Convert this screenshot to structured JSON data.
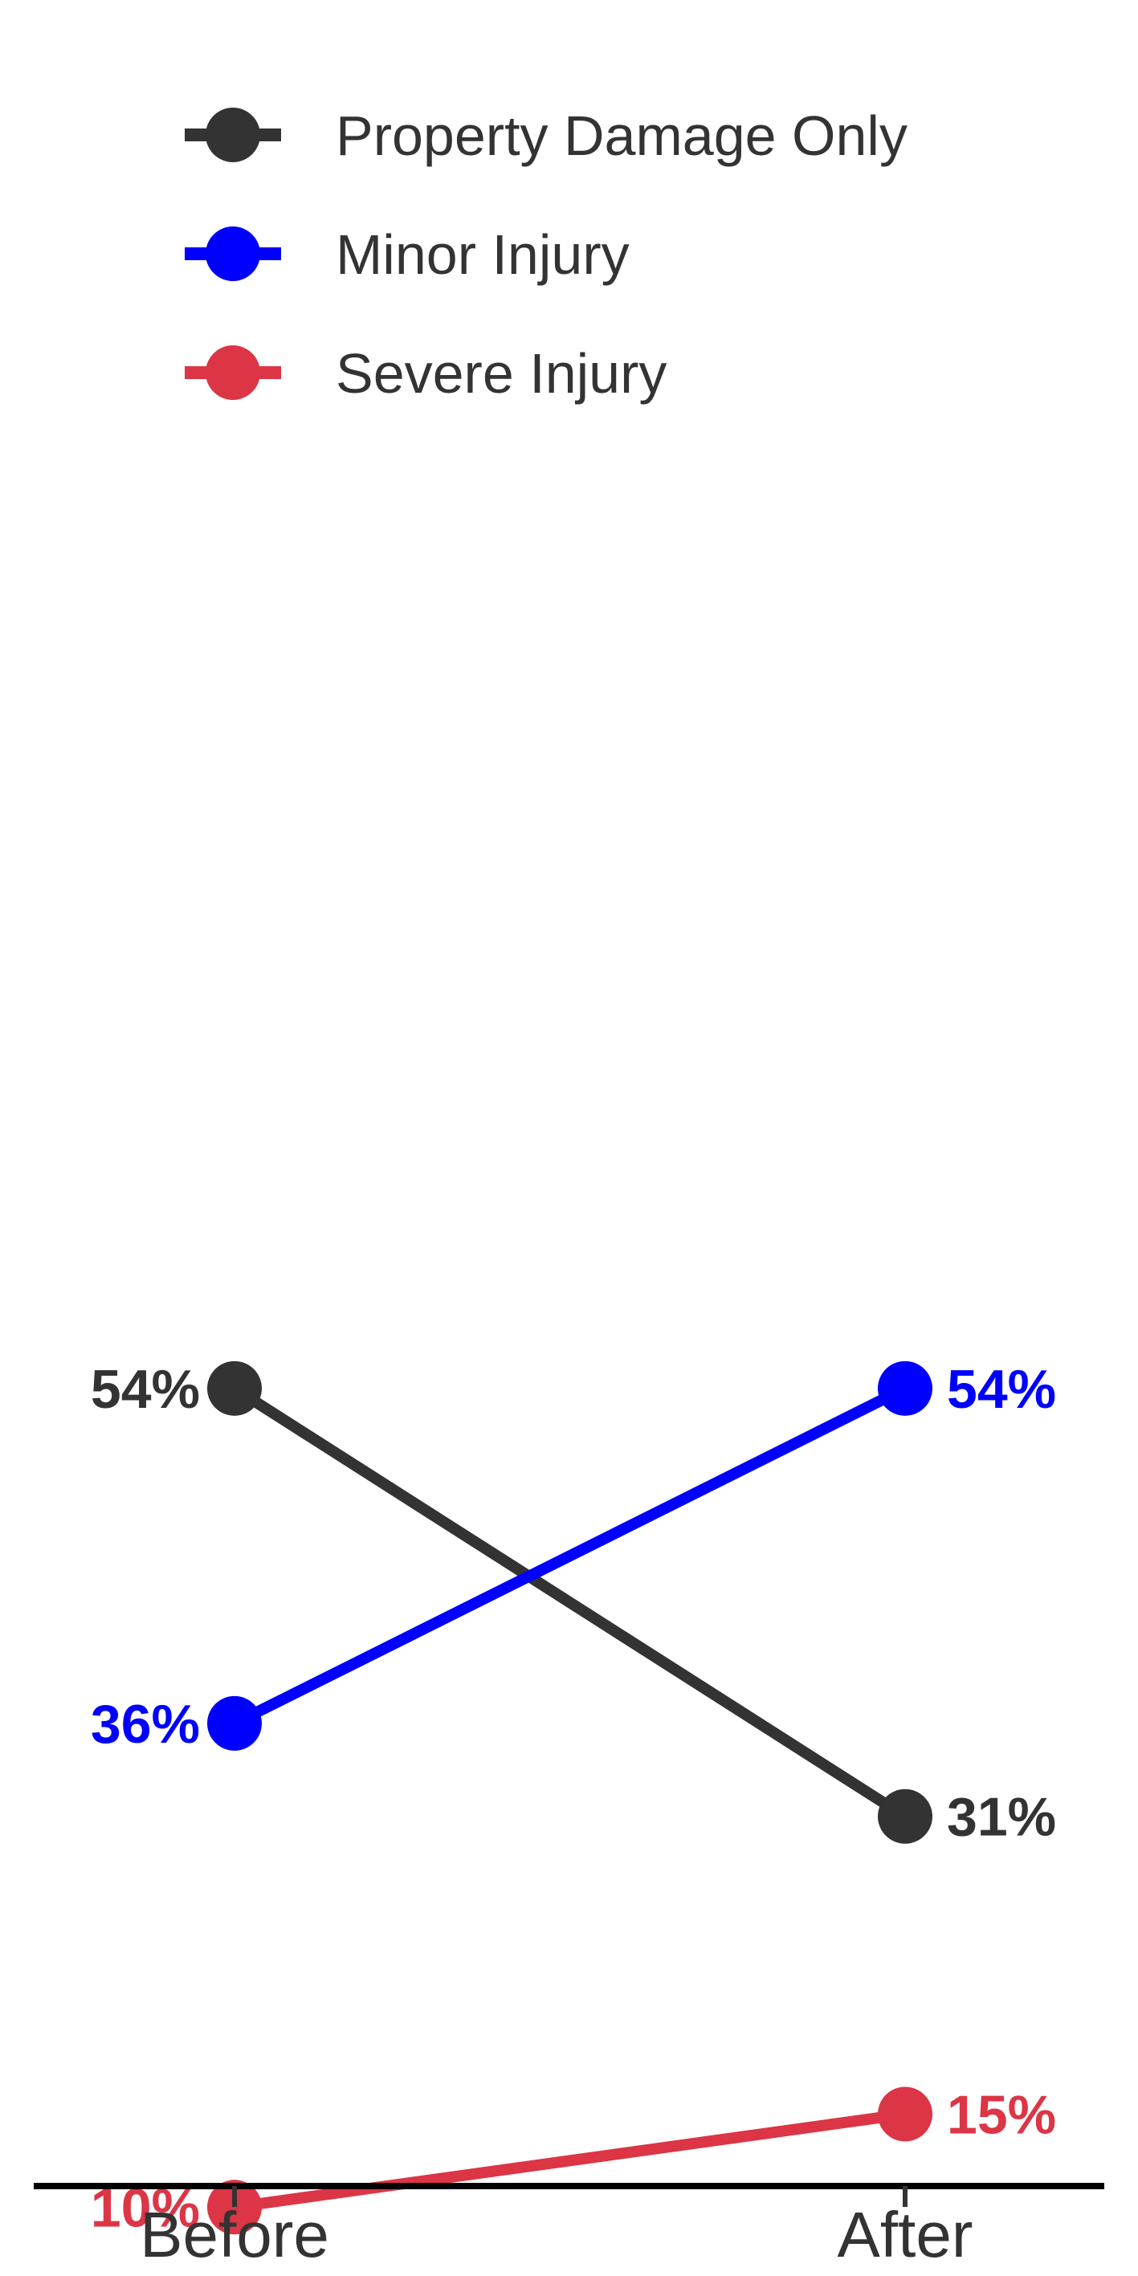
{
  "chart_data": {
    "type": "line",
    "categories": [
      "Before",
      "After"
    ],
    "series": [
      {
        "name": "Property Damage Only",
        "values": [
          54,
          31
        ],
        "labels": [
          "54%",
          "31%"
        ],
        "color": "#333333"
      },
      {
        "name": "Minor Injury",
        "values": [
          36,
          54
        ],
        "labels": [
          "36%",
          "54%"
        ],
        "color": "#0000ff"
      },
      {
        "name": "Severe Injury",
        "values": [
          10,
          15
        ],
        "labels": [
          "10%",
          "15%"
        ],
        "color": "#dc3545"
      }
    ],
    "value_unit": "%",
    "title": "",
    "xlabel": "",
    "ylabel": "",
    "ylim": [
      0,
      100
    ],
    "grid": false,
    "legend_position": "top-left",
    "show_y_axis": false
  }
}
